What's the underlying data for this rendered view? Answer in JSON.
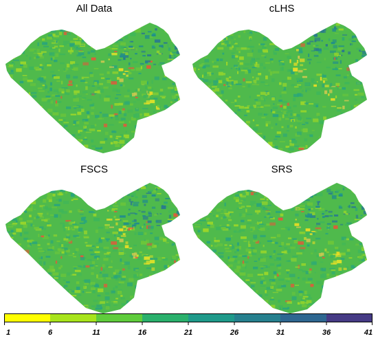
{
  "panels": [
    {
      "title": "All Data"
    },
    {
      "title": "cLHS"
    },
    {
      "title": "FSCS"
    },
    {
      "title": "SRS"
    }
  ],
  "legend": {
    "ticks": [
      "1",
      "6",
      "11",
      "16",
      "21",
      "26",
      "31",
      "36",
      "41"
    ],
    "colors": [
      "#ffff00",
      "#a8e41c",
      "#5fcc3c",
      "#2ab06c",
      "#1f9a8a",
      "#26808e",
      "#2e6790",
      "#463b85",
      "#440154"
    ]
  },
  "map_palette": [
    "#9ad62a",
    "#6cc63a",
    "#3fb65a",
    "#2aa67a",
    "#208d8c",
    "#2a7a8e",
    "#d8e02a",
    "#eadd24",
    "#c8c850",
    "#e05a3a"
  ]
}
